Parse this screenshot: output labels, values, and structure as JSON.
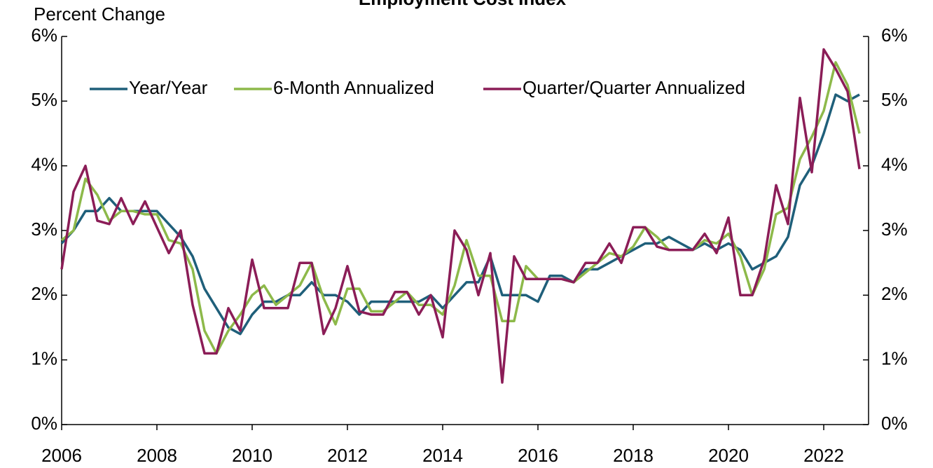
{
  "chart_data": {
    "type": "line",
    "title": "Employment Cost Index",
    "y_label": "Percent Change",
    "x": [
      2006,
      2006.25,
      2006.5,
      2006.75,
      2007,
      2007.25,
      2007.5,
      2007.75,
      2008,
      2008.25,
      2008.5,
      2008.75,
      2009,
      2009.25,
      2009.5,
      2009.75,
      2010,
      2010.25,
      2010.5,
      2010.75,
      2011,
      2011.25,
      2011.5,
      2011.75,
      2012,
      2012.25,
      2012.5,
      2012.75,
      2013,
      2013.25,
      2013.5,
      2013.75,
      2014,
      2014.25,
      2014.5,
      2014.75,
      2015,
      2015.25,
      2015.5,
      2015.75,
      2016,
      2016.25,
      2016.5,
      2016.75,
      2017,
      2017.25,
      2017.5,
      2017.75,
      2018,
      2018.25,
      2018.5,
      2018.75,
      2019,
      2019.25,
      2019.5,
      2019.75,
      2020,
      2020.25,
      2020.5,
      2020.75,
      2021,
      2021.25,
      2021.5,
      2021.75,
      2022,
      2022.25,
      2022.5,
      2022.75
    ],
    "series": [
      {
        "name": "Year/Year",
        "color": "#1f5f7a",
        "values": [
          2.8,
          3.0,
          3.3,
          3.3,
          3.5,
          3.3,
          3.3,
          3.3,
          3.3,
          3.1,
          2.9,
          2.6,
          2.1,
          1.8,
          1.5,
          1.4,
          1.7,
          1.9,
          1.9,
          2.0,
          2.0,
          2.2,
          2.0,
          2.0,
          1.9,
          1.7,
          1.9,
          1.9,
          1.9,
          1.9,
          1.9,
          2.0,
          1.8,
          2.0,
          2.2,
          2.2,
          2.6,
          2.0,
          2.0,
          2.0,
          1.9,
          2.3,
          2.3,
          2.2,
          2.4,
          2.4,
          2.5,
          2.6,
          2.7,
          2.8,
          2.8,
          2.9,
          2.8,
          2.7,
          2.8,
          2.7,
          2.8,
          2.7,
          2.4,
          2.5,
          2.6,
          2.9,
          3.7,
          4.0,
          4.5,
          5.1,
          5.0,
          5.1
        ]
      },
      {
        "name": "6-Month Annualized",
        "color": "#8db94a",
        "values": [
          2.85,
          3.0,
          3.8,
          3.55,
          3.15,
          3.3,
          3.3,
          3.25,
          3.25,
          2.85,
          2.8,
          2.4,
          1.45,
          1.1,
          1.45,
          1.7,
          2.0,
          2.15,
          1.85,
          2.0,
          2.15,
          2.5,
          1.95,
          1.55,
          2.1,
          2.1,
          1.75,
          1.75,
          1.9,
          2.05,
          1.85,
          1.85,
          1.7,
          2.15,
          2.85,
          2.3,
          2.3,
          1.6,
          1.6,
          2.45,
          2.25,
          2.25,
          2.25,
          2.2,
          2.35,
          2.5,
          2.65,
          2.6,
          2.75,
          3.05,
          2.9,
          2.7,
          2.7,
          2.7,
          2.85,
          2.8,
          2.95,
          2.6,
          2.0,
          2.4,
          3.25,
          3.35,
          4.1,
          4.45,
          4.85,
          5.6,
          5.25,
          4.5
        ]
      },
      {
        "name": "Quarter/Quarter Annualized",
        "color": "#8b1d57",
        "values": [
          2.4,
          3.6,
          4.0,
          3.15,
          3.1,
          3.5,
          3.1,
          3.45,
          3.05,
          2.65,
          3.0,
          1.85,
          1.1,
          1.1,
          1.8,
          1.45,
          2.55,
          1.8,
          1.8,
          1.8,
          2.5,
          2.5,
          1.4,
          1.8,
          2.45,
          1.75,
          1.7,
          1.7,
          2.05,
          2.05,
          1.7,
          2.0,
          1.35,
          3.0,
          2.7,
          2.0,
          2.65,
          0.65,
          2.6,
          2.25,
          2.25,
          2.25,
          2.25,
          2.2,
          2.5,
          2.5,
          2.8,
          2.5,
          3.05,
          3.05,
          2.75,
          2.7,
          2.7,
          2.7,
          2.95,
          2.65,
          3.2,
          2.0,
          2.0,
          2.55,
          3.7,
          3.1,
          5.05,
          3.9,
          5.8,
          5.5,
          5.15,
          3.95
        ]
      }
    ],
    "xlim": [
      2006,
      2023
    ],
    "xticks": [
      2006,
      2008,
      2010,
      2012,
      2014,
      2016,
      2018,
      2020,
      2022
    ],
    "ylim": [
      0,
      6
    ],
    "yticks": [
      {
        "value": 0,
        "label": "0%"
      },
      {
        "value": 1,
        "label": "1%"
      },
      {
        "value": 2,
        "label": "2%"
      },
      {
        "value": 3,
        "label": "3%"
      },
      {
        "value": 4,
        "label": "4%"
      },
      {
        "value": 5,
        "label": "5%"
      },
      {
        "value": 6,
        "label": "6%"
      }
    ],
    "y2lim": [
      0,
      6
    ],
    "y2ticks": [
      {
        "value": 0,
        "label": "0%"
      },
      {
        "value": 1,
        "label": "1%"
      },
      {
        "value": 2,
        "label": "2%"
      },
      {
        "value": 3,
        "label": "3%"
      },
      {
        "value": 4,
        "label": "4%"
      },
      {
        "value": 5,
        "label": "5%"
      },
      {
        "value": 6,
        "label": "6%"
      }
    ],
    "legend": "top-left",
    "grid": false
  }
}
